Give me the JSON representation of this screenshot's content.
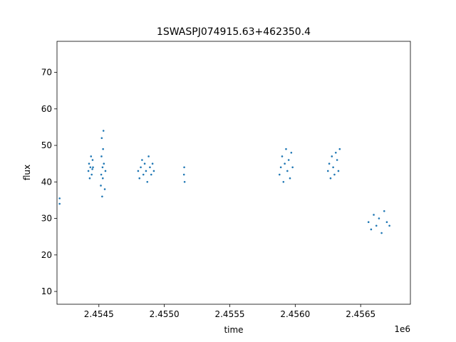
{
  "chart_data": {
    "type": "scatter",
    "title": "1SWASPJ074915.63+462350.4",
    "xlabel": "time",
    "ylabel": "flux",
    "x_offset_label": "1e6",
    "x_scale": 1000000,
    "xlim": [
      2454180,
      2456880
    ],
    "ylim": [
      6.5,
      78.5
    ],
    "x_ticks": [
      2454500,
      2455000,
      2455500,
      2456000,
      2456500
    ],
    "x_tick_labels": [
      "2.4545",
      "2.4550",
      "2.4555",
      "2.4560",
      "2.4565"
    ],
    "y_ticks": [
      10,
      20,
      30,
      40,
      50,
      60,
      70
    ],
    "y_tick_labels": [
      "10",
      "20",
      "30",
      "40",
      "50",
      "60",
      "70"
    ],
    "grid": false,
    "marker_color": "#1f77b4",
    "series": [
      {
        "x": [
          2454200,
          2454200,
          2454420,
          2454425,
          2454430,
          2454435,
          2454440,
          2454445,
          2454450,
          2454452,
          2454455,
          2454515,
          2454518,
          2454520,
          2454522,
          2454525,
          2454528,
          2454530,
          2454532,
          2454535,
          2454538,
          2454545,
          2454550
        ],
        "y": [
          34,
          35.5,
          43,
          45,
          41,
          44,
          47,
          42,
          43.5,
          46,
          44,
          39,
          42,
          47,
          52,
          36,
          44,
          41,
          49,
          54,
          45,
          38,
          43
        ]
      },
      {
        "x": [
          2454800,
          2454810,
          2454820,
          2454830,
          2454840,
          2454850,
          2454860,
          2454870,
          2454880,
          2454890,
          2454900,
          2454910,
          2454920,
          2455150,
          2455152,
          2455155
        ],
        "y": [
          43,
          41,
          44,
          46,
          42,
          45,
          43,
          40,
          47,
          44,
          42,
          45,
          43,
          42,
          44,
          40
        ]
      },
      {
        "x": [
          2455880,
          2455890,
          2455900,
          2455910,
          2455920,
          2455930,
          2455940,
          2455950,
          2455960,
          2455970,
          2455980
        ],
        "y": [
          42,
          44,
          47,
          40,
          45,
          49,
          43,
          46,
          41,
          48,
          44
        ]
      },
      {
        "x": [
          2456250,
          2456260,
          2456270,
          2456280,
          2456290,
          2456300,
          2456310,
          2456320,
          2456330,
          2456340
        ],
        "y": [
          43,
          45,
          41,
          47,
          44,
          42,
          48,
          46,
          43,
          49
        ]
      },
      {
        "x": [
          2456560,
          2456580,
          2456600,
          2456620,
          2456640,
          2456660,
          2456680,
          2456700,
          2456720
        ],
        "y": [
          29,
          27,
          31,
          28,
          30,
          26,
          32,
          29,
          28
        ]
      }
    ]
  }
}
